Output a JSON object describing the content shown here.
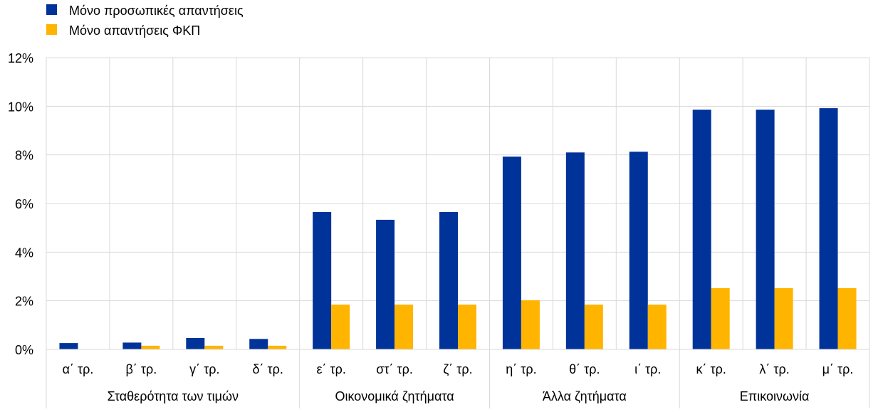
{
  "chart_data": {
    "type": "bar",
    "title": "",
    "xlabel": "",
    "ylabel": "",
    "ylim": [
      0,
      12
    ],
    "yticks": [
      "0%",
      "2%",
      "4%",
      "6%",
      "8%",
      "10%",
      "12%"
    ],
    "grid": true,
    "legend_position": "top-left",
    "categories": [
      "α΄ τρ.",
      "β΄ τρ.",
      "γ΄ τρ.",
      "δ΄ τρ.",
      "ε΄ τρ.",
      "στ΄ τρ.",
      "ζ΄ τρ.",
      "η΄ τρ.",
      "θ΄ τρ.",
      "ι΄ τρ.",
      "κ΄ τρ.",
      "λ΄ τρ.",
      "μ΄ τρ."
    ],
    "groups": [
      {
        "label": "Σταθερότητα των τιμών",
        "count": 4
      },
      {
        "label": "Οικονομικά ζητήματα",
        "count": 3
      },
      {
        "label": "Άλλα ζητήματα",
        "count": 3
      },
      {
        "label": "Επικοινωνία",
        "count": 3
      }
    ],
    "series": [
      {
        "name": "Μόνο προσωπικές απαντήσεις",
        "color": "#003399",
        "values": [
          0.26,
          0.28,
          0.47,
          0.43,
          5.65,
          5.33,
          5.65,
          7.93,
          8.1,
          8.13,
          9.86,
          9.86,
          9.92
        ]
      },
      {
        "name": "Μόνο απαντήσεις ΦΚΠ",
        "color": "#FFB400",
        "values": [
          0,
          0.15,
          0.15,
          0.15,
          1.84,
          1.84,
          1.84,
          2.02,
          1.84,
          1.84,
          2.52,
          2.52,
          2.52
        ]
      }
    ]
  }
}
